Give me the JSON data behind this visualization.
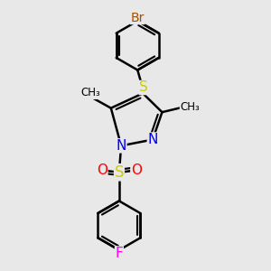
{
  "bg_color": "#e8e8e8",
  "bond_color": "#000000",
  "bond_width": 1.8,
  "atom_colors": {
    "Br": "#A05000",
    "S_thio": "#cccc00",
    "S_sulfonyl": "#cccc00",
    "N": "#0000EE",
    "O": "#FF0000",
    "F": "#FF00FF",
    "C": "#000000"
  },
  "font_size": 10,
  "fig_size": [
    3.0,
    3.0
  ],
  "dpi": 100,
  "xlim": [
    -2.0,
    2.0
  ],
  "ylim": [
    -3.5,
    3.0
  ]
}
